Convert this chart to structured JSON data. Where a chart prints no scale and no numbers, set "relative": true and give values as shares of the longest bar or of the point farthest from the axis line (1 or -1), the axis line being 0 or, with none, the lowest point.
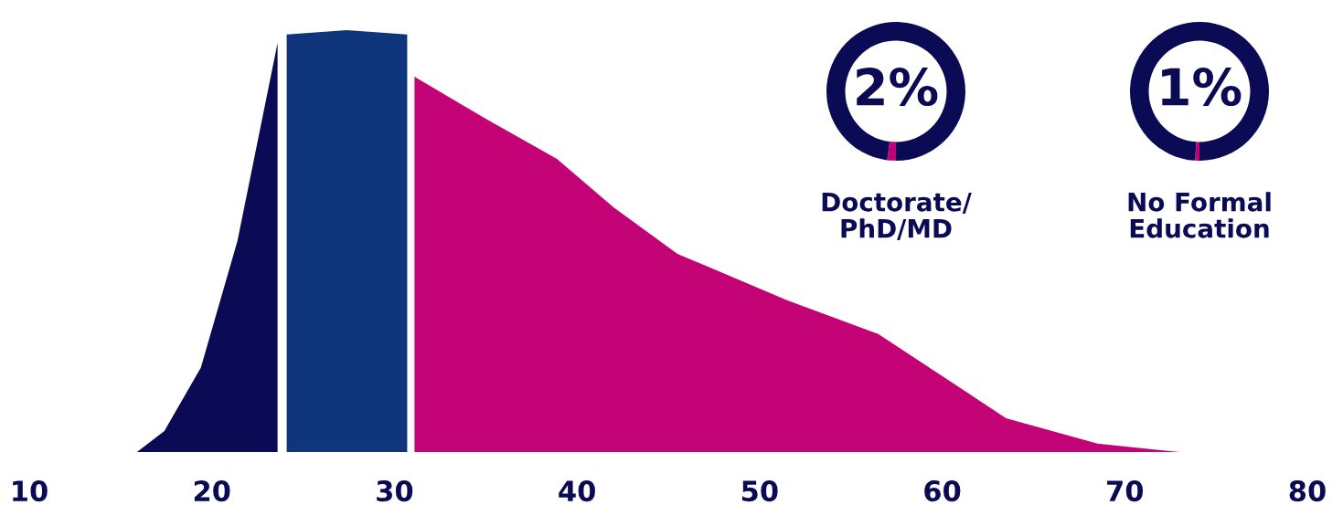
{
  "chart_data": [
    {
      "type": "area",
      "relative": true,
      "xlim": [
        10,
        80
      ],
      "xticks": [
        10,
        20,
        30,
        40,
        50,
        60,
        70,
        80
      ],
      "grid": false,
      "legend": false,
      "series": [
        {
          "color": "#0a0a55",
          "x": [
            15.9,
            17.4,
            19.4,
            21.4,
            23.6,
            23.6
          ],
          "values": [
            0,
            0.05,
            0.2,
            0.5,
            0.97,
            0
          ]
        },
        {
          "color": "#0f367c",
          "x": [
            24.1,
            24.1,
            27.4,
            30.7,
            30.7
          ],
          "values": [
            0,
            0.99,
            1,
            0.99,
            0
          ]
        },
        {
          "color": "#c20275",
          "x": [
            31.1,
            31.1,
            35,
            38.9,
            42,
            45.5,
            51.5,
            56.5,
            60,
            63.5,
            68.5,
            73
          ],
          "values": [
            0,
            0.89,
            0.79,
            0.695,
            0.58,
            0.47,
            0.36,
            0.28,
            0.18,
            0.08,
            0.02,
            0
          ]
        }
      ]
    },
    {
      "type": "donut",
      "title": "Doctorate/\nPhD/MD",
      "values": [
        2,
        98
      ],
      "colors": [
        "#c20275",
        "#0a0a55"
      ],
      "annotations": [
        "2%"
      ]
    },
    {
      "type": "donut",
      "title": "No Formal\nEducation",
      "values": [
        1,
        99
      ],
      "colors": [
        "#c20275",
        "#0a0a55"
      ],
      "annotations": [
        "1%"
      ]
    }
  ]
}
